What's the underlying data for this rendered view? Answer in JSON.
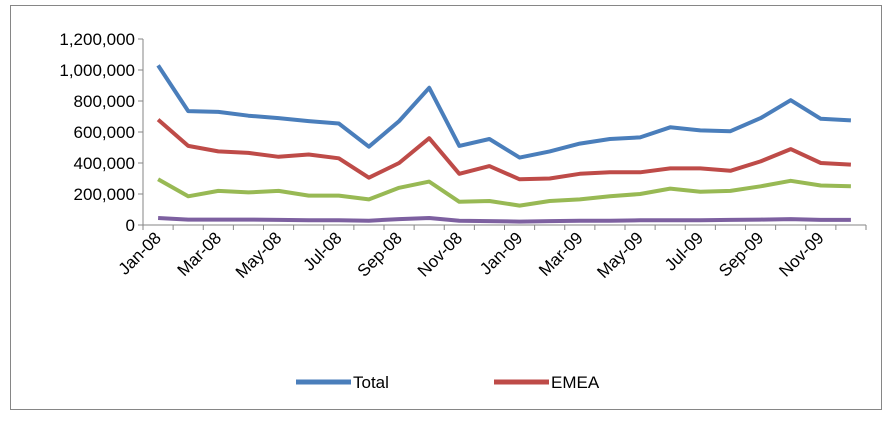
{
  "chart_data": {
    "type": "line",
    "categories": [
      "Jan-08",
      null,
      "Mar-08",
      null,
      "May-08",
      null,
      "Jul-08",
      null,
      "Sep-08",
      null,
      "Nov-08",
      null,
      "Jan-09",
      null,
      "Mar-09",
      null,
      "May-09",
      null,
      "Jul-09",
      null,
      "Sep-09",
      null,
      "Nov-09",
      null
    ],
    "series": [
      {
        "name": "Total",
        "color": "#4a7ebb",
        "values": [
          1030000,
          735000,
          730000,
          705000,
          690000,
          670000,
          655000,
          505000,
          670000,
          885000,
          510000,
          555000,
          435000,
          475000,
          525000,
          555000,
          565000,
          630000,
          610000,
          605000,
          690000,
          805000,
          685000,
          675000
        ]
      },
      {
        "name": "EMEA",
        "color": "#be4b48",
        "values": [
          680000,
          510000,
          475000,
          465000,
          440000,
          455000,
          430000,
          305000,
          400000,
          560000,
          330000,
          380000,
          295000,
          300000,
          330000,
          340000,
          340000,
          365000,
          365000,
          350000,
          410000,
          490000,
          400000,
          390000
        ]
      },
      {
        "color": "#98b954",
        "values": [
          295000,
          185000,
          220000,
          210000,
          220000,
          190000,
          190000,
          165000,
          240000,
          280000,
          150000,
          155000,
          125000,
          155000,
          165000,
          185000,
          200000,
          235000,
          215000,
          220000,
          250000,
          285000,
          255000,
          250000
        ]
      },
      {
        "color": "#7d60a0",
        "values": [
          45000,
          35000,
          35000,
          35000,
          33000,
          30000,
          30000,
          28000,
          38000,
          45000,
          28000,
          25000,
          22000,
          25000,
          28000,
          28000,
          30000,
          30000,
          30000,
          33000,
          35000,
          38000,
          33000,
          33000
        ]
      }
    ],
    "ylim": [
      0,
      1200000
    ],
    "yticks": [
      0,
      {
        "value": 200000,
        "label": "200,000"
      },
      {
        "value": 400000,
        "label": "400,000"
      },
      {
        "value": 600000,
        "label": "600,000"
      },
      {
        "value": 800000,
        "label": "800,000"
      },
      {
        "value": 1000000,
        "label": "1,000,000"
      },
      {
        "value": 1200000,
        "label": "1,200,000"
      }
    ],
    "grid": false,
    "legend": "bottom"
  }
}
